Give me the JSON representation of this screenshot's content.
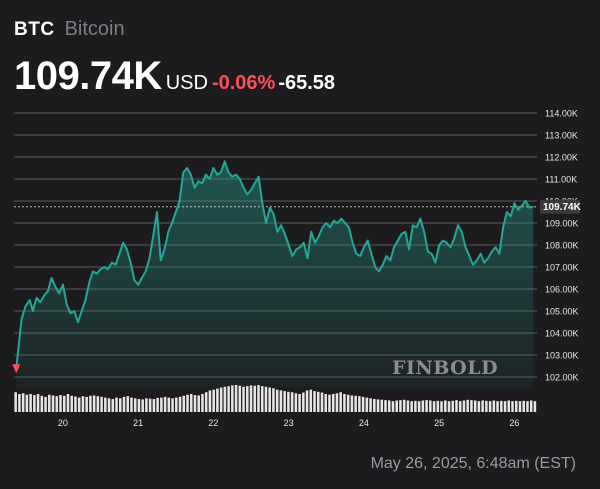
{
  "header": {
    "ticker": "BTC",
    "name": "Bitcoin",
    "price": "109.74K",
    "currency": "USD",
    "change_pct": "-0.06%",
    "change_abs": "-65.58"
  },
  "footer": {
    "timestamp": "May 26, 2025, 6:48am (EST)"
  },
  "watermark": "FINBOLD",
  "colors": {
    "line": "#26a69a",
    "down": "#ff4d5e",
    "background": "#1c1c1e",
    "volume": "#e6e6e6"
  },
  "chart_data": {
    "type": "area",
    "x_ticks": [
      "20",
      "21",
      "22",
      "23",
      "24",
      "25",
      "26"
    ],
    "y_ticks": [
      "102.00K",
      "103.00K",
      "104.00K",
      "105.00K",
      "106.00K",
      "107.00K",
      "108.00K",
      "109.00K",
      "110.00K",
      "111.00K",
      "112.00K",
      "113.00K",
      "114.00K"
    ],
    "ylim": [
      101.5,
      114.5
    ],
    "xlim": [
      19.35,
      26.3
    ],
    "current_price": 109.74,
    "current_label": "109.74K",
    "grid": "horizontal",
    "series": [
      {
        "x": [
          19.38,
          19.45,
          19.5,
          19.56,
          19.6,
          19.65,
          19.7,
          19.75,
          19.8,
          19.85,
          19.9,
          19.95,
          20.0,
          20.05,
          20.1,
          20.15,
          20.2,
          20.25,
          20.3,
          20.35,
          20.4,
          20.45,
          20.5,
          20.55,
          20.6,
          20.65,
          20.7,
          20.75,
          20.8,
          20.85,
          20.9,
          20.95,
          21.0,
          21.05,
          21.1,
          21.15,
          21.2,
          21.25,
          21.3,
          21.35,
          21.4,
          21.45,
          21.5,
          21.55,
          21.6,
          21.65,
          21.7,
          21.75,
          21.8,
          21.85,
          21.9,
          21.95,
          22.0,
          22.05,
          22.1,
          22.15,
          22.2,
          22.25,
          22.3,
          22.35,
          22.4,
          22.45,
          22.5,
          22.55,
          22.6,
          22.65,
          22.7,
          22.75,
          22.8,
          22.85,
          22.9,
          22.95,
          23.0,
          23.05,
          23.1,
          23.15,
          23.2,
          23.25,
          23.3,
          23.35,
          23.4,
          23.45,
          23.5,
          23.55,
          23.6,
          23.65,
          23.7,
          23.75,
          23.8,
          23.85,
          23.9,
          23.95,
          24.0,
          24.05,
          24.1,
          24.15,
          24.2,
          24.25,
          24.3,
          24.35,
          24.4,
          24.45,
          24.5,
          24.55,
          24.6,
          24.65,
          24.7,
          24.75,
          24.8,
          24.85,
          24.9,
          24.95,
          25.0,
          25.05,
          25.1,
          25.15,
          25.2,
          25.25,
          25.3,
          25.35,
          25.4,
          25.45,
          25.5,
          25.55,
          25.6,
          25.65,
          25.7,
          25.75,
          25.8,
          25.85,
          25.9,
          25.95,
          26.0,
          26.05,
          26.1,
          26.15,
          26.2,
          26.25
        ],
        "y": [
          102.4,
          104.6,
          105.2,
          105.5,
          105.0,
          105.6,
          105.4,
          105.7,
          105.9,
          106.5,
          106.1,
          105.8,
          106.2,
          105.3,
          104.9,
          105.0,
          104.5,
          105.0,
          105.5,
          106.3,
          106.8,
          106.7,
          106.9,
          107.0,
          106.9,
          107.2,
          107.1,
          107.6,
          108.1,
          107.8,
          107.2,
          106.4,
          106.2,
          106.5,
          106.8,
          107.4,
          108.4,
          109.5,
          107.3,
          107.8,
          108.6,
          109.0,
          109.5,
          110.0,
          111.3,
          111.5,
          111.2,
          110.6,
          110.9,
          110.8,
          111.2,
          111.0,
          111.5,
          111.2,
          111.3,
          111.8,
          111.3,
          111.1,
          111.2,
          111.0,
          110.6,
          110.3,
          110.5,
          110.8,
          111.1,
          109.9,
          109.0,
          109.7,
          109.4,
          108.6,
          108.9,
          108.5,
          108.0,
          107.5,
          107.8,
          107.9,
          108.1,
          107.4,
          108.6,
          108.1,
          108.4,
          108.8,
          109.0,
          108.8,
          109.1,
          109.0,
          109.2,
          109.0,
          108.8,
          108.1,
          107.6,
          107.5,
          107.9,
          108.2,
          107.6,
          107.0,
          106.8,
          107.1,
          107.5,
          107.3,
          107.9,
          108.2,
          108.5,
          108.6,
          107.8,
          108.9,
          108.8,
          109.2,
          108.6,
          107.7,
          107.6,
          107.2,
          108.0,
          108.2,
          108.1,
          107.9,
          108.3,
          108.9,
          108.6,
          107.9,
          107.5,
          107.1,
          107.3,
          107.6,
          107.2,
          107.4,
          107.7,
          107.9,
          107.6,
          108.8,
          109.5,
          109.3,
          109.9,
          109.6,
          109.8,
          110.0,
          109.7,
          109.74
        ]
      }
    ],
    "volume": [
      0.55,
      0.5,
      0.52,
      0.48,
      0.5,
      0.47,
      0.5,
      0.45,
      0.42,
      0.48,
      0.46,
      0.44,
      0.47,
      0.45,
      0.5,
      0.45,
      0.43,
      0.4,
      0.44,
      0.42,
      0.45,
      0.46,
      0.44,
      0.42,
      0.4,
      0.38,
      0.36,
      0.4,
      0.38,
      0.42,
      0.44,
      0.4,
      0.38,
      0.36,
      0.35,
      0.38,
      0.37,
      0.36,
      0.39,
      0.4,
      0.42,
      0.4,
      0.38,
      0.4,
      0.42,
      0.45,
      0.48,
      0.5,
      0.47,
      0.46,
      0.5,
      0.55,
      0.6,
      0.62,
      0.65,
      0.68,
      0.7,
      0.72,
      0.74,
      0.75,
      0.73,
      0.7,
      0.72,
      0.74,
      0.73,
      0.75,
      0.72,
      0.7,
      0.68,
      0.66,
      0.62,
      0.6,
      0.58,
      0.56,
      0.55,
      0.52,
      0.5,
      0.54,
      0.6,
      0.62,
      0.58,
      0.56,
      0.54,
      0.5,
      0.48,
      0.5,
      0.52,
      0.55,
      0.5,
      0.48,
      0.46,
      0.45,
      0.44,
      0.42,
      0.4,
      0.38,
      0.36,
      0.35,
      0.34,
      0.33,
      0.32,
      0.3,
      0.32,
      0.33,
      0.34,
      0.32,
      0.3,
      0.31,
      0.3,
      0.32,
      0.33,
      0.32,
      0.3,
      0.31,
      0.3,
      0.32,
      0.3,
      0.31,
      0.33,
      0.3,
      0.32,
      0.34,
      0.33,
      0.32,
      0.3,
      0.32,
      0.31,
      0.3,
      0.32,
      0.3,
      0.31,
      0.3,
      0.32,
      0.3,
      0.31,
      0.3,
      0.31,
      0.3,
      0.32,
      0.3
    ]
  }
}
